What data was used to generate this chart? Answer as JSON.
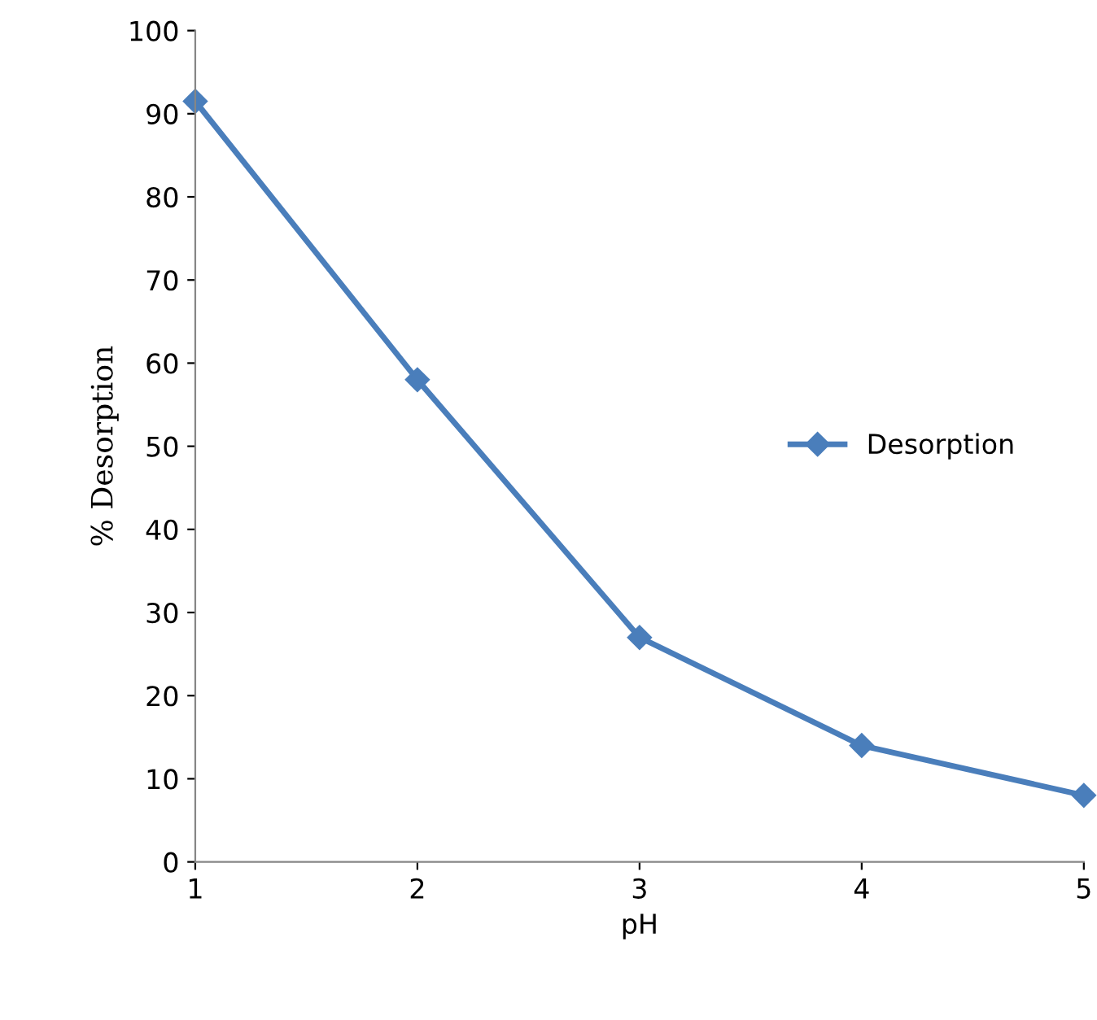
{
  "chart_data": {
    "type": "line",
    "xlabel": "pH",
    "ylabel": "% Desorption",
    "x": [
      1,
      2,
      3,
      4,
      5
    ],
    "series": [
      {
        "name": "Desorption",
        "color": "#4a7ebb",
        "values": [
          91.5,
          58,
          27,
          14,
          8
        ]
      }
    ],
    "xlim": [
      1,
      5
    ],
    "xticks": [
      1,
      2,
      3,
      4,
      5
    ],
    "ylim": [
      0,
      100
    ],
    "yticks": [
      0,
      10,
      20,
      30,
      40,
      50,
      60,
      70,
      80,
      90,
      100
    ],
    "grid": false,
    "legend": "right",
    "marker": "diamond",
    "line_style": "solid"
  }
}
